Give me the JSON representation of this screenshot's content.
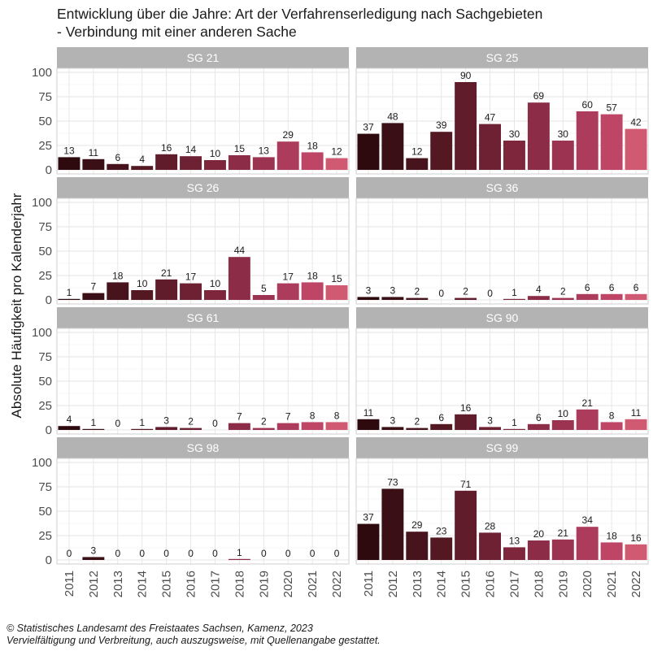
{
  "title_line1": "Entwicklung über die Jahre: Art der Verfahrenserledigung nach Sachgebieten",
  "title_line2": "- Verbindung mit einer anderen Sache",
  "footer_line1": "© Statistisches Landesamt des Freistaates Sachsen, Kamenz, 2023",
  "footer_line2": "Vervielfältigung und Verbreitung, auch auszugsweise, mit Quellenangabe gestattet.",
  "colors": {
    "strip_bg": "#b3b3b3",
    "strip_text": "#ffffff",
    "grid": "#e6e6e6",
    "panel_border": "#cfcfcf",
    "bars": [
      "#2e0a0e",
      "#3a0f15",
      "#47131c",
      "#541823",
      "#611c2b",
      "#6e2133",
      "#7d263c",
      "#8c2c46",
      "#9c3350",
      "#ad3b5b",
      "#bf4566",
      "#d05a72"
    ]
  },
  "chart_data": {
    "type": "bar",
    "facets": true,
    "ylabel": "Absolute Häufigkeit pro Kalenderjahr",
    "xlabel": "",
    "ylim": [
      0,
      100
    ],
    "yticks": [
      0,
      25,
      50,
      75,
      100
    ],
    "categories": [
      "2011",
      "2012",
      "2013",
      "2014",
      "2015",
      "2016",
      "2017",
      "2018",
      "2019",
      "2020",
      "2021",
      "2022"
    ],
    "panels": [
      {
        "name": "SG 21",
        "values": [
          13,
          11,
          6,
          4,
          16,
          14,
          10,
          15,
          13,
          29,
          18,
          12
        ]
      },
      {
        "name": "SG 25",
        "values": [
          37,
          48,
          12,
          39,
          90,
          47,
          30,
          69,
          30,
          60,
          57,
          42
        ]
      },
      {
        "name": "SG 26",
        "values": [
          1,
          7,
          18,
          10,
          21,
          17,
          10,
          44,
          5,
          17,
          18,
          15
        ]
      },
      {
        "name": "SG 36",
        "values": [
          3,
          3,
          2,
          0,
          2,
          0,
          1,
          4,
          2,
          6,
          6,
          6
        ]
      },
      {
        "name": "SG 61",
        "values": [
          4,
          1,
          0,
          1,
          3,
          2,
          0,
          7,
          2,
          7,
          8,
          8
        ]
      },
      {
        "name": "SG 90",
        "values": [
          11,
          3,
          2,
          6,
          16,
          3,
          1,
          6,
          10,
          21,
          8,
          11
        ]
      },
      {
        "name": "SG 98",
        "values": [
          0,
          3,
          0,
          0,
          0,
          0,
          0,
          1,
          0,
          0,
          0,
          0
        ]
      },
      {
        "name": "SG 99",
        "values": [
          37,
          73,
          29,
          23,
          71,
          28,
          13,
          20,
          21,
          34,
          18,
          16
        ]
      }
    ]
  }
}
